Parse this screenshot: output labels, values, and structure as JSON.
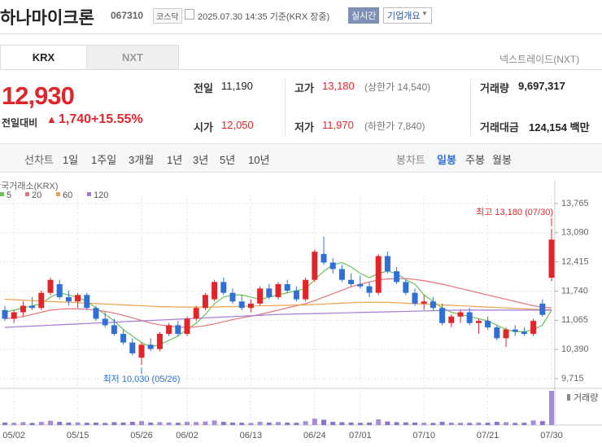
{
  "header": {
    "title": "하나마이크론",
    "code": "067310",
    "market": "코스닥",
    "timestamp": "2025.07.30 14:35 기준(KRX 장중)",
    "realtime": "실시간",
    "company": "기업개요"
  },
  "tabs": {
    "items": [
      "KRX",
      "NXT"
    ],
    "nxt_link": "넥스트레이드(NXT)"
  },
  "quote": {
    "price": "12,930",
    "change_label": "전일대비",
    "change": "1,740",
    "rate": "+15.55%"
  },
  "stats": [
    [
      {
        "label": "전일",
        "value": "11,190"
      },
      {
        "label": "고가",
        "value": "13,180",
        "extra": "(상한가 14,540)"
      },
      {
        "label": "거래량",
        "value": "9,697,317"
      }
    ],
    [
      {
        "label": "시가",
        "value": "12,050"
      },
      {
        "label": "저가",
        "value": "11,970",
        "extra": "(하한가 7,840)"
      },
      {
        "label": "거래대금",
        "value": "124,154 백만"
      }
    ]
  ],
  "toolbar": {
    "line": [
      "선차트",
      "1일",
      "1주일",
      "3개월",
      "1년",
      "3년",
      "5년",
      "10년"
    ],
    "candle": [
      "봉차트",
      "일봉",
      "주봉",
      "월봉"
    ]
  },
  "chart_data": {
    "type": "candlestick",
    "source": "한국거래소(KRX)",
    "volume_label": "거래량",
    "categories": [
      null,
      "05/02",
      null,
      null,
      null,
      null,
      null,
      null,
      "05/15",
      null,
      null,
      null,
      null,
      null,
      null,
      "05/26",
      null,
      null,
      null,
      null,
      "06/02",
      null,
      null,
      null,
      null,
      null,
      null,
      "06/13",
      null,
      null,
      null,
      null,
      null,
      null,
      "06/24",
      null,
      null,
      null,
      null,
      "07/01",
      null,
      null,
      null,
      null,
      null,
      null,
      "07/10",
      null,
      null,
      null,
      null,
      null,
      null,
      "07/21",
      null,
      null,
      null,
      null,
      null,
      null,
      "07/30"
    ],
    "open": [
      11300,
      11100,
      11250,
      11400,
      11350,
      11700,
      11900,
      11600,
      11500,
      11650,
      11350,
      11100,
      10950,
      10750,
      10550,
      10200,
      10500,
      10400,
      10750,
      10950,
      10750,
      11100,
      11350,
      11550,
      11950,
      11700,
      11500,
      11350,
      11450,
      11800,
      11600,
      11900,
      11750,
      11550,
      12000,
      12600,
      12400,
      12250,
      12000,
      11900,
      11850,
      11700,
      12550,
      12200,
      11950,
      11700,
      11450,
      11500,
      11350,
      11000,
      11150,
      11250,
      11000,
      11050,
      10900,
      10650,
      10850,
      10800,
      10750,
      11450,
      12050
    ],
    "high": [
      11400,
      11300,
      11500,
      11600,
      11750,
      12050,
      12000,
      11750,
      11700,
      11700,
      11400,
      11250,
      11100,
      10850,
      10650,
      10550,
      10650,
      10800,
      11000,
      11050,
      11150,
      11400,
      11700,
      12000,
      12050,
      11800,
      11650,
      11550,
      11850,
      11900,
      11950,
      12000,
      11850,
      12050,
      12700,
      13000,
      12500,
      12350,
      12150,
      12100,
      11950,
      12600,
      12650,
      12300,
      12000,
      11800,
      11650,
      11600,
      11450,
      11200,
      11300,
      11350,
      11100,
      11150,
      10950,
      10900,
      10950,
      10900,
      11100,
      11550,
      13180
    ],
    "low": [
      11050,
      11000,
      11150,
      11300,
      11300,
      11650,
      11550,
      11400,
      11350,
      11300,
      11050,
      10900,
      10700,
      10500,
      10250,
      10030,
      10350,
      10350,
      10700,
      10700,
      10700,
      11050,
      11300,
      11500,
      11650,
      11450,
      11300,
      11250,
      11400,
      11550,
      11550,
      11700,
      11500,
      11500,
      11950,
      12350,
      12150,
      11950,
      11850,
      11800,
      11600,
      11650,
      12150,
      11900,
      11650,
      11400,
      11300,
      11300,
      10950,
      10900,
      11000,
      10950,
      10750,
      10850,
      10600,
      10450,
      10700,
      10700,
      10700,
      11150,
      11970
    ],
    "close": [
      11100,
      11250,
      11400,
      11350,
      11700,
      12000,
      11600,
      11500,
      11650,
      11350,
      11100,
      10950,
      10750,
      10550,
      10300,
      10500,
      10400,
      10750,
      10950,
      10750,
      11100,
      11350,
      11650,
      11950,
      11700,
      11500,
      11350,
      11450,
      11800,
      11600,
      11900,
      11750,
      11550,
      12000,
      12650,
      12400,
      12250,
      12000,
      11900,
      11850,
      11700,
      12550,
      12200,
      11950,
      11700,
      11450,
      11500,
      11350,
      11000,
      11150,
      11250,
      11000,
      11050,
      10900,
      10650,
      10850,
      10800,
      10750,
      11050,
      11190,
      12930
    ],
    "volume": [
      700000,
      650000,
      800000,
      600000,
      900000,
      1200000,
      900000,
      700000,
      750000,
      650000,
      700000,
      600000,
      800000,
      700000,
      900000,
      1100000,
      700000,
      800000,
      750000,
      650000,
      900000,
      850000,
      1000000,
      1300000,
      900000,
      700000,
      650000,
      600000,
      900000,
      700000,
      850000,
      700000,
      650000,
      1100000,
      1800000,
      1500000,
      900000,
      800000,
      700000,
      650000,
      700000,
      1600000,
      1000000,
      800000,
      750000,
      700000,
      650000,
      600000,
      900000,
      700000,
      650000,
      600000,
      700000,
      650000,
      900000,
      800000,
      600000,
      650000,
      1300000,
      1100000,
      9697317
    ],
    "up_color": "#e0262b",
    "down_color": "#2f6fd6",
    "series": [
      {
        "name": "5",
        "color": "#6cc15a",
        "values": [
          11250,
          11300,
          11350,
          11400,
          11450,
          11600,
          11700,
          11650,
          11600,
          11500,
          11350,
          11200,
          11050,
          10850,
          10700,
          10550,
          10450,
          10500,
          10600,
          10700,
          10850,
          11000,
          11200,
          11450,
          11600,
          11650,
          11650,
          11600,
          11550,
          11600,
          11650,
          11700,
          11750,
          11800,
          12000,
          12200,
          12350,
          12400,
          12300,
          12150,
          12050,
          12150,
          12200,
          12150,
          12000,
          11900,
          11650,
          11500,
          11350,
          11250,
          11200,
          11150,
          11100,
          11050,
          10950,
          10850,
          10800,
          10800,
          10850,
          10950,
          11300
        ]
      },
      {
        "name": "20",
        "color": "#e8737a",
        "values": [
          11100,
          11120,
          11150,
          11200,
          11250,
          11300,
          11320,
          11330,
          11330,
          11320,
          11300,
          11270,
          11230,
          11180,
          11120,
          11060,
          11000,
          10960,
          10930,
          10910,
          10900,
          10910,
          10940,
          10980,
          11030,
          11080,
          11120,
          11160,
          11200,
          11250,
          11300,
          11350,
          11400,
          11450,
          11520,
          11600,
          11680,
          11760,
          11840,
          11900,
          11950,
          12000,
          12020,
          12030,
          12030,
          12010,
          11980,
          11940,
          11900,
          11850,
          11800,
          11750,
          11700,
          11650,
          11600,
          11550,
          11500,
          11450,
          11400,
          11370,
          11350
        ]
      },
      {
        "name": "60",
        "color": "#f0a04b",
        "values": [
          11550,
          11540,
          11530,
          11520,
          11510,
          11500,
          11490,
          11480,
          11470,
          11460,
          11450,
          11440,
          11430,
          11420,
          11410,
          11400,
          11390,
          11380,
          11380,
          11370,
          11370,
          11370,
          11370,
          11370,
          11380,
          11380,
          11390,
          11390,
          11400,
          11400,
          11410,
          11410,
          11420,
          11420,
          11430,
          11440,
          11450,
          11460,
          11470,
          11480,
          11480,
          11480,
          11480,
          11470,
          11460,
          11450,
          11440,
          11430,
          11420,
          11410,
          11400,
          11390,
          11380,
          11370,
          11360,
          11350,
          11340,
          11330,
          11320,
          11310,
          11310
        ]
      },
      {
        "name": "120",
        "color": "#a27ad6",
        "values": [
          10900,
          10910,
          10920,
          10930,
          10940,
          10950,
          10960,
          10970,
          10980,
          10990,
          11000,
          11010,
          11020,
          11030,
          11040,
          11050,
          11060,
          11070,
          11080,
          11090,
          11100,
          11110,
          11120,
          11130,
          11140,
          11150,
          11160,
          11170,
          11180,
          11190,
          11200,
          11205,
          11210,
          11215,
          11220,
          11225,
          11230,
          11235,
          11240,
          11245,
          11250,
          11255,
          11260,
          11265,
          11270,
          11275,
          11280,
          11285,
          11290,
          11295,
          11300,
          11300,
          11300,
          11300,
          11300,
          11300,
          11300,
          11300,
          11300,
          11300,
          11300
        ]
      }
    ],
    "ylim": [
      9715,
      13765
    ],
    "yticks": [
      {
        "value": 9715,
        "label": "9,715"
      },
      {
        "value": 10390,
        "label": "10,390"
      },
      {
        "value": 11065,
        "label": "11,065"
      },
      {
        "value": 11740,
        "label": "11,740"
      },
      {
        "value": 12415,
        "label": "12,415"
      },
      {
        "value": 13090,
        "label": "13,090"
      },
      {
        "value": 13765,
        "label": "13,765"
      }
    ],
    "grid": true,
    "annotations": [
      {
        "text": "최고 13,180 (07/30)",
        "index": 60,
        "value": 13180
      },
      {
        "text": "최저 10,030 (05/26)",
        "index": 15,
        "value": 10030
      }
    ]
  }
}
